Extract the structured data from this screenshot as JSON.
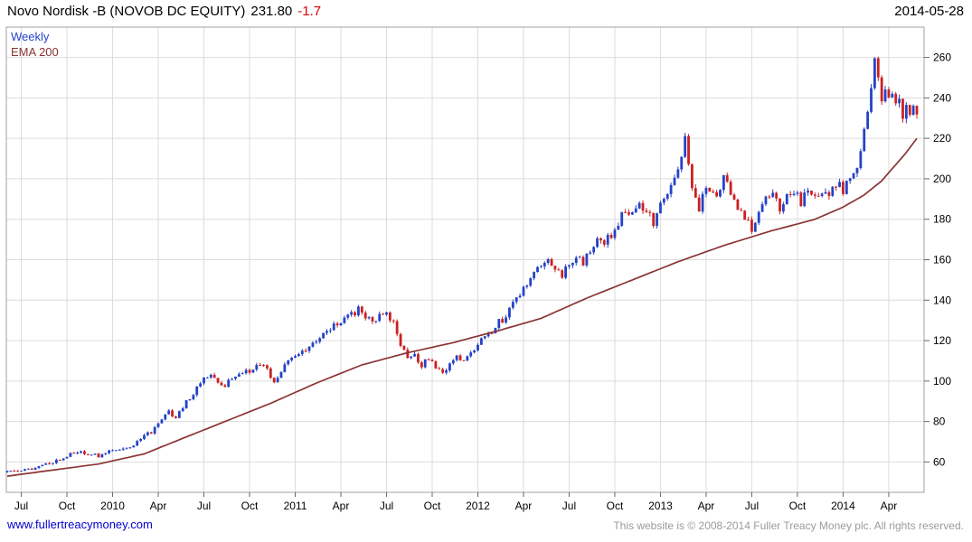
{
  "header": {
    "title": "Novo Nordisk -B (NOVOB DC EQUITY)",
    "price": "231.80",
    "change": "-1.7",
    "date": "2014-05-28"
  },
  "legend": {
    "series_label": "Weekly",
    "ema_label": "EMA 200"
  },
  "footer": {
    "site": "www.fullertreacymoney.com",
    "copyright": "This website is © 2008-2014 Fuller Treacy Money plc. All rights reserved."
  },
  "colors": {
    "up": "#2442c8",
    "down": "#cc2020",
    "ema": "#8b3434",
    "grid": "#dcdcdc",
    "border": "#a0a0a0",
    "tick": "#666666",
    "axis_text": "#000000",
    "change": "#e00000",
    "link": "#0000cc",
    "muted": "#9b9b9b"
  },
  "chart_data": {
    "type": "candlestick",
    "timeframe": "weekly",
    "title": "Novo Nordisk -B (NOVOB DC EQUITY)",
    "last_close": 231.8,
    "last_change": -1.7,
    "as_of": "2014-05-28",
    "n_weeks": 260,
    "ylim": [
      45,
      275
    ],
    "y_ticks": [
      60,
      80,
      100,
      120,
      140,
      160,
      180,
      200,
      220,
      240,
      260
    ],
    "x_tick_weeks": [
      4,
      17,
      30,
      43,
      56,
      69,
      82,
      95,
      108,
      121,
      134,
      147,
      160,
      173,
      186,
      199,
      212,
      225,
      238,
      251
    ],
    "x_tick_labels": [
      "Jul",
      "Oct",
      "2010",
      "Apr",
      "Jul",
      "Oct",
      "2011",
      "Apr",
      "Jul",
      "Oct",
      "2012",
      "Apr",
      "Jul",
      "Oct",
      "2013",
      "Apr",
      "Jul",
      "Oct",
      "2014",
      "Apr"
    ],
    "close_anchors": [
      [
        0,
        55
      ],
      [
        3,
        56
      ],
      [
        6,
        56
      ],
      [
        9,
        58
      ],
      [
        13,
        60
      ],
      [
        17,
        63
      ],
      [
        20,
        65
      ],
      [
        23,
        64
      ],
      [
        26,
        63
      ],
      [
        29,
        65
      ],
      [
        32,
        66
      ],
      [
        35,
        67
      ],
      [
        38,
        71
      ],
      [
        41,
        75
      ],
      [
        43,
        80
      ],
      [
        46,
        85
      ],
      [
        48,
        81
      ],
      [
        50,
        87
      ],
      [
        53,
        94
      ],
      [
        56,
        101
      ],
      [
        58,
        104
      ],
      [
        61,
        97
      ],
      [
        64,
        101
      ],
      [
        67,
        104
      ],
      [
        70,
        106
      ],
      [
        72,
        109
      ],
      [
        74,
        105
      ],
      [
        76,
        99
      ],
      [
        78,
        104
      ],
      [
        80,
        110
      ],
      [
        83,
        113
      ],
      [
        86,
        117
      ],
      [
        89,
        121
      ],
      [
        92,
        126
      ],
      [
        95,
        129
      ],
      [
        98,
        133
      ],
      [
        100,
        135
      ],
      [
        102,
        131
      ],
      [
        104,
        129
      ],
      [
        106,
        133
      ],
      [
        108,
        134
      ],
      [
        110,
        128
      ],
      [
        112,
        117
      ],
      [
        114,
        111
      ],
      [
        116,
        113
      ],
      [
        118,
        107
      ],
      [
        120,
        112
      ],
      [
        122,
        106
      ],
      [
        124,
        104
      ],
      [
        126,
        109
      ],
      [
        128,
        113
      ],
      [
        130,
        109
      ],
      [
        132,
        113
      ],
      [
        134,
        118
      ],
      [
        136,
        121
      ],
      [
        138,
        125
      ],
      [
        140,
        129
      ],
      [
        142,
        132
      ],
      [
        144,
        138
      ],
      [
        146,
        143
      ],
      [
        148,
        149
      ],
      [
        150,
        154
      ],
      [
        152,
        158
      ],
      [
        154,
        160
      ],
      [
        156,
        154
      ],
      [
        158,
        152
      ],
      [
        160,
        158
      ],
      [
        162,
        162
      ],
      [
        164,
        159
      ],
      [
        166,
        165
      ],
      [
        168,
        170
      ],
      [
        170,
        167
      ],
      [
        172,
        173
      ],
      [
        174,
        179
      ],
      [
        176,
        185
      ],
      [
        178,
        182
      ],
      [
        180,
        187
      ],
      [
        182,
        183
      ],
      [
        184,
        179
      ],
      [
        186,
        188
      ],
      [
        188,
        193
      ],
      [
        190,
        199
      ],
      [
        192,
        210
      ],
      [
        193,
        219
      ],
      [
        194,
        207
      ],
      [
        195,
        195
      ],
      [
        196,
        189
      ],
      [
        197,
        185
      ],
      [
        198,
        191
      ],
      [
        200,
        196
      ],
      [
        202,
        189
      ],
      [
        204,
        200
      ],
      [
        206,
        194
      ],
      [
        208,
        185
      ],
      [
        210,
        179
      ],
      [
        212,
        176
      ],
      [
        214,
        182
      ],
      [
        216,
        189
      ],
      [
        218,
        193
      ],
      [
        220,
        185
      ],
      [
        222,
        190
      ],
      [
        224,
        194
      ],
      [
        226,
        189
      ],
      [
        228,
        194
      ],
      [
        230,
        190
      ],
      [
        232,
        194
      ],
      [
        234,
        191
      ],
      [
        236,
        197
      ],
      [
        238,
        195
      ],
      [
        240,
        200
      ],
      [
        242,
        207
      ],
      [
        243,
        213
      ],
      [
        244,
        222
      ],
      [
        245,
        233
      ],
      [
        246,
        246
      ],
      [
        247,
        258
      ],
      [
        248,
        250
      ],
      [
        249,
        240
      ],
      [
        250,
        246
      ],
      [
        251,
        237
      ],
      [
        252,
        243
      ],
      [
        253,
        235
      ],
      [
        254,
        240
      ],
      [
        255,
        232
      ],
      [
        256,
        237
      ],
      [
        257,
        230
      ],
      [
        258,
        235
      ],
      [
        259,
        231.8
      ]
    ],
    "ema_anchors": [
      [
        0,
        53
      ],
      [
        13,
        56
      ],
      [
        26,
        59
      ],
      [
        39,
        64
      ],
      [
        49,
        71
      ],
      [
        62,
        80
      ],
      [
        75,
        89
      ],
      [
        88,
        99
      ],
      [
        101,
        108
      ],
      [
        114,
        114
      ],
      [
        127,
        119
      ],
      [
        140,
        125
      ],
      [
        152,
        131
      ],
      [
        165,
        141
      ],
      [
        178,
        150
      ],
      [
        191,
        159
      ],
      [
        204,
        167
      ],
      [
        217,
        174
      ],
      [
        230,
        180
      ],
      [
        238,
        186
      ],
      [
        244,
        192
      ],
      [
        249,
        199
      ],
      [
        253,
        207
      ],
      [
        256,
        213
      ],
      [
        259,
        220
      ]
    ]
  }
}
